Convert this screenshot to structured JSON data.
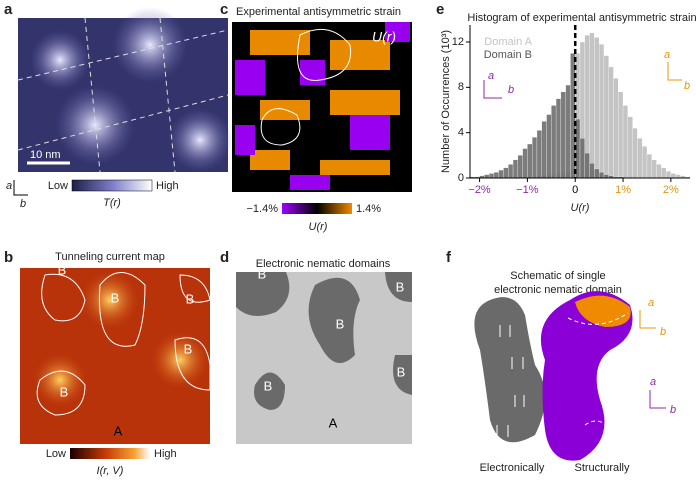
{
  "panels": {
    "a": {
      "label": "a",
      "scale_bar": "10 nm",
      "colorbar": {
        "low": "Low",
        "high": "High",
        "quantity": "T(r)"
      },
      "axis_a": "a",
      "axis_b": "b"
    },
    "b": {
      "label": "b",
      "title": "Tunneling current map",
      "domain_labels": [
        "B",
        "B",
        "B",
        "B",
        "B",
        "A"
      ],
      "colorbar": {
        "low": "Low",
        "high": "High",
        "quantity": "I(r, V)"
      }
    },
    "c": {
      "label": "c",
      "title": "Experimental antisymmetric strain",
      "map_label": "U(r)",
      "colorbar": {
        "min": "−1.4%",
        "max": "1.4%",
        "quantity": "U(r)"
      }
    },
    "d": {
      "label": "d",
      "title": "Electronic nematic domains",
      "domain_labels": [
        "B",
        "B",
        "B",
        "B",
        "B",
        "A"
      ]
    },
    "f": {
      "label": "f",
      "title_lines": [
        "Schematic of single",
        "electronic nematic domain"
      ],
      "captions": [
        "Electronically",
        "Structurally"
      ],
      "orange_axes": [
        "a",
        "b"
      ],
      "purple_axes": [
        "a",
        "b"
      ]
    }
  },
  "chart_data": {
    "type": "histogram",
    "panel_label": "e",
    "title": "Histogram of experimental antisymmetric strain",
    "x_label": "U(r)",
    "y_label": "Number of Occurrences (10³)",
    "bins": [
      -2.2,
      -2.1,
      -2.0,
      -1.9,
      -1.8,
      -1.7,
      -1.6,
      -1.5,
      -1.4,
      -1.3,
      -1.2,
      -1.1,
      -1.0,
      -0.9,
      -0.8,
      -0.7,
      -0.6,
      -0.5,
      -0.4,
      -0.3,
      -0.2,
      -0.1,
      0,
      0.1,
      0.2,
      0.3,
      0.4,
      0.5,
      0.6,
      0.7,
      0.8,
      0.9,
      1.0,
      1.1,
      1.2,
      1.3,
      1.4,
      1.5,
      1.6,
      1.7,
      1.8,
      1.9,
      2.0,
      2.1,
      2.2,
      2.3,
      2.4
    ],
    "series": [
      {
        "name": "Domain A",
        "color": "#c4c4c4",
        "values": [
          0,
          0,
          0,
          0,
          0,
          0,
          0,
          0,
          0,
          0,
          0,
          0,
          0.1,
          0.1,
          0.2,
          0.2,
          0.3,
          0.3,
          0.4,
          0.5,
          0.6,
          0.8,
          11.0,
          12.0,
          12.6,
          12.8,
          12.4,
          11.8,
          10.8,
          9.8,
          8.8,
          7.6,
          6.4,
          5.4,
          4.4,
          3.5,
          2.8,
          2.1,
          1.6,
          1.2,
          0.9,
          0.6,
          0.4,
          0.3,
          0.2,
          0.1
        ]
      },
      {
        "name": "Domain B",
        "color": "#6e6e6e",
        "values": [
          0.1,
          0.1,
          0.2,
          0.3,
          0.4,
          0.5,
          0.7,
          0.9,
          1.2,
          1.6,
          2.0,
          2.6,
          3.0,
          3.6,
          4.2,
          5.0,
          5.6,
          6.4,
          7.0,
          7.6,
          8.2,
          11.0,
          5.2,
          3.5,
          2.2,
          1.3,
          0.8,
          0.5,
          0.3,
          0.2,
          0.1,
          0.1,
          0,
          0,
          0,
          0,
          0,
          0,
          0,
          0,
          0,
          0,
          0,
          0,
          0,
          0
        ]
      }
    ],
    "xlim": [
      -2.2,
      2.4
    ],
    "ylim": [
      0,
      13.5
    ],
    "xticks": [
      {
        "value": -2,
        "label": "−2%"
      },
      {
        "value": -1,
        "label": "−1%"
      },
      0,
      {
        "value": 1,
        "label": "1%"
      },
      {
        "value": 2,
        "label": "2%"
      }
    ],
    "xtick_colors": [
      "#8a2aa8",
      "#8a2aa8",
      "#000000",
      "#e8940c",
      "#e8940c"
    ],
    "yticks": [
      0,
      4,
      8,
      12
    ],
    "reference_line": 0,
    "purple_axes": [
      "a",
      "b"
    ],
    "orange_axes": [
      "a",
      "b"
    ]
  }
}
